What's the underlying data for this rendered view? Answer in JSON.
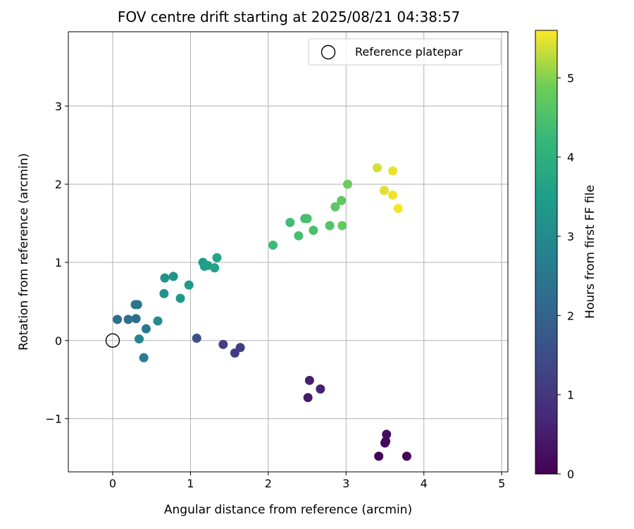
{
  "chart_data": {
    "type": "scatter",
    "title": "FOV centre drift starting at 2025/08/21 04:38:57",
    "xlabel": "Angular distance from reference (arcmin)",
    "ylabel": "Rotation from reference (arcmin)",
    "xlim": [
      -0.57,
      5.08
    ],
    "ylim": [
      -1.68,
      3.95
    ],
    "x_ticks": [
      0,
      1,
      2,
      3,
      4,
      5
    ],
    "y_ticks": [
      -1,
      0,
      1,
      2,
      3
    ],
    "x_tick_labels": [
      "0",
      "1",
      "2",
      "3",
      "4",
      "5"
    ],
    "y_tick_labels": [
      "−1",
      "0",
      "1",
      "2",
      "3"
    ],
    "grid": true,
    "legend": {
      "position": "top-right",
      "entries": [
        "Reference platepar"
      ]
    },
    "colorbar": {
      "label": "Hours from first FF file",
      "range": [
        0,
        5.6
      ],
      "ticks": [
        0,
        1,
        2,
        3,
        4,
        5
      ],
      "tick_labels": [
        "0",
        "1",
        "2",
        "3",
        "4",
        "5"
      ],
      "colormap": "viridis"
    },
    "reference_point": {
      "x": 0,
      "y": 0
    },
    "points": [
      {
        "x": 3.42,
        "y": -1.48,
        "hours": 0.0
      },
      {
        "x": 3.78,
        "y": -1.48,
        "hours": 0.05
      },
      {
        "x": 3.51,
        "y": -1.29,
        "hours": 0.1
      },
      {
        "x": 3.5,
        "y": -1.31,
        "hours": 0.15
      },
      {
        "x": 3.52,
        "y": -1.2,
        "hours": 0.2
      },
      {
        "x": 2.51,
        "y": -0.73,
        "hours": 0.45
      },
      {
        "x": 2.53,
        "y": -0.51,
        "hours": 0.55
      },
      {
        "x": 2.67,
        "y": -0.62,
        "hours": 0.6
      },
      {
        "x": 1.57,
        "y": -0.16,
        "hours": 1.1
      },
      {
        "x": 1.64,
        "y": -0.09,
        "hours": 1.15
      },
      {
        "x": 1.42,
        "y": -0.05,
        "hours": 1.2
      },
      {
        "x": 1.08,
        "y": 0.03,
        "hours": 1.55
      },
      {
        "x": 0.06,
        "y": 0.27,
        "hours": 2.2
      },
      {
        "x": 0.2,
        "y": 0.27,
        "hours": 2.25
      },
      {
        "x": 0.3,
        "y": 0.28,
        "hours": 2.3
      },
      {
        "x": 0.29,
        "y": 0.46,
        "hours": 2.4
      },
      {
        "x": 0.32,
        "y": 0.46,
        "hours": 2.45
      },
      {
        "x": 0.43,
        "y": 0.15,
        "hours": 2.55
      },
      {
        "x": 0.4,
        "y": -0.22,
        "hours": 2.65
      },
      {
        "x": 0.34,
        "y": 0.02,
        "hours": 2.9
      },
      {
        "x": 0.58,
        "y": 0.25,
        "hours": 3.05
      },
      {
        "x": 0.66,
        "y": 0.6,
        "hours": 3.15
      },
      {
        "x": 0.67,
        "y": 0.8,
        "hours": 3.2
      },
      {
        "x": 0.78,
        "y": 0.82,
        "hours": 3.25
      },
      {
        "x": 0.87,
        "y": 0.54,
        "hours": 3.35
      },
      {
        "x": 0.98,
        "y": 0.71,
        "hours": 3.4
      },
      {
        "x": 1.16,
        "y": 1.0,
        "hours": 3.45
      },
      {
        "x": 1.18,
        "y": 0.95,
        "hours": 3.5
      },
      {
        "x": 1.22,
        "y": 0.96,
        "hours": 3.55
      },
      {
        "x": 1.31,
        "y": 0.93,
        "hours": 3.6
      },
      {
        "x": 1.34,
        "y": 1.06,
        "hours": 3.65
      },
      {
        "x": 2.06,
        "y": 1.22,
        "hours": 4.3
      },
      {
        "x": 2.28,
        "y": 1.51,
        "hours": 4.35
      },
      {
        "x": 2.39,
        "y": 1.34,
        "hours": 4.4
      },
      {
        "x": 2.47,
        "y": 1.56,
        "hours": 4.42
      },
      {
        "x": 2.5,
        "y": 1.56,
        "hours": 4.45
      },
      {
        "x": 2.58,
        "y": 1.41,
        "hours": 4.45
      },
      {
        "x": 2.79,
        "y": 1.47,
        "hours": 4.55
      },
      {
        "x": 2.86,
        "y": 1.71,
        "hours": 4.65
      },
      {
        "x": 2.94,
        "y": 1.79,
        "hours": 4.7
      },
      {
        "x": 2.95,
        "y": 1.47,
        "hours": 4.75
      },
      {
        "x": 3.02,
        "y": 2.0,
        "hours": 4.85
      },
      {
        "x": 3.4,
        "y": 2.21,
        "hours": 5.4
      },
      {
        "x": 3.49,
        "y": 1.92,
        "hours": 5.45
      },
      {
        "x": 3.6,
        "y": 2.17,
        "hours": 5.5
      },
      {
        "x": 3.6,
        "y": 1.86,
        "hours": 5.52
      },
      {
        "x": 3.67,
        "y": 1.69,
        "hours": 5.55
      }
    ]
  }
}
